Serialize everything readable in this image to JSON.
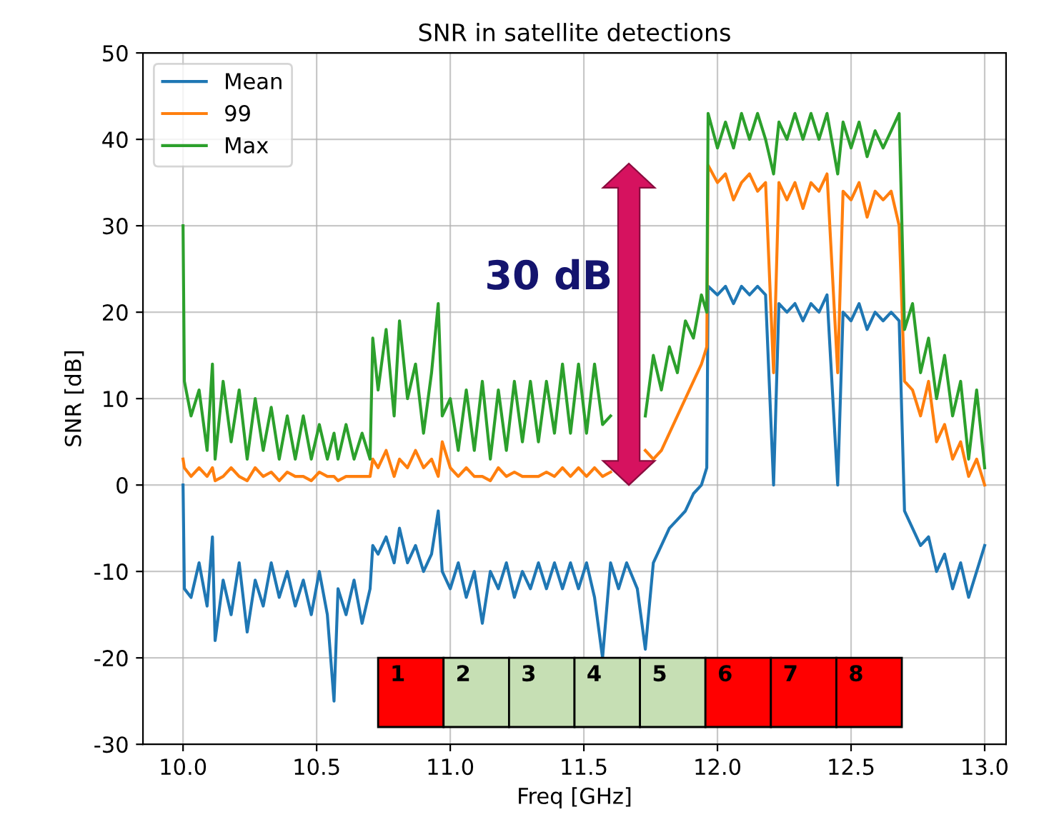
{
  "chart_data": {
    "type": "line",
    "title": "SNR in satellite detections",
    "xlabel": "Freq [GHz]",
    "ylabel": "SNR [dB]",
    "x": [
      10.0,
      10.005,
      10.03,
      10.06,
      10.09,
      10.11,
      10.12,
      10.15,
      10.18,
      10.21,
      10.24,
      10.27,
      10.3,
      10.33,
      10.36,
      10.39,
      10.42,
      10.45,
      10.48,
      10.51,
      10.54,
      10.565,
      10.58,
      10.61,
      10.64,
      10.67,
      10.7,
      10.71,
      10.73,
      10.76,
      10.79,
      10.81,
      10.84,
      10.87,
      10.9,
      10.93,
      10.955,
      10.97,
      11.0,
      11.03,
      11.06,
      11.09,
      11.12,
      11.15,
      11.18,
      11.21,
      11.24,
      11.27,
      11.3,
      11.33,
      11.36,
      11.39,
      11.42,
      11.45,
      11.48,
      11.51,
      11.54,
      11.57,
      11.6,
      11.63,
      11.66,
      11.7,
      11.73,
      11.76,
      11.79,
      11.82,
      11.85,
      11.88,
      11.91,
      11.94,
      11.96,
      11.965,
      12.0,
      12.03,
      12.06,
      12.09,
      12.12,
      12.15,
      12.18,
      12.21,
      12.23,
      12.26,
      12.29,
      12.32,
      12.35,
      12.38,
      12.41,
      12.45,
      12.47,
      12.5,
      12.53,
      12.56,
      12.59,
      12.62,
      12.65,
      12.68,
      12.7,
      12.73,
      12.76,
      12.79,
      12.82,
      12.85,
      12.88,
      12.91,
      12.94,
      12.97,
      13.0
    ],
    "series": [
      {
        "name": "Mean",
        "color": "#1f77b4",
        "values": [
          0,
          -12,
          -13,
          -9,
          -14,
          -6,
          -18,
          -11,
          -15,
          -9,
          -17,
          -11,
          -14,
          -9,
          -13,
          -10,
          -14,
          -11,
          -15,
          -10,
          -15,
          -25,
          -12,
          -15,
          -11,
          -16,
          -12,
          -7,
          -8,
          -6,
          -9,
          -5,
          -9,
          -7,
          -10,
          -8,
          -3,
          -10,
          -12,
          -9,
          -13,
          -10,
          -16,
          -10,
          -12,
          -9,
          -13,
          -10,
          -12,
          -9,
          -12,
          -9,
          -12,
          -9,
          -12,
          -9,
          -13,
          -20,
          -9,
          -12,
          -9,
          -12,
          -19,
          -9,
          -7,
          -5,
          -4,
          -3,
          -1,
          0,
          2,
          23,
          22,
          23,
          21,
          23,
          22,
          23,
          22,
          0,
          21,
          20,
          21,
          19,
          21,
          20,
          22,
          0,
          20,
          19,
          21,
          18,
          20,
          19,
          20,
          19,
          -3,
          -5,
          -7,
          -6,
          -10,
          -8,
          -12,
          -9,
          -13,
          -10,
          -7
        ]
      },
      {
        "name": "99",
        "color": "#ff7f0e",
        "values": [
          3,
          2,
          1,
          2,
          1,
          2,
          0.5,
          1,
          2,
          1,
          0.5,
          2,
          1,
          1.5,
          0.5,
          1.5,
          1,
          1,
          0.5,
          1.5,
          1,
          1,
          0.5,
          1,
          1,
          1,
          1,
          3,
          2,
          4,
          1,
          3,
          2,
          4,
          2,
          3,
          1,
          5,
          2,
          1,
          2,
          1,
          1,
          0.5,
          2,
          1,
          1.5,
          1,
          1,
          1,
          1.5,
          1,
          2,
          1,
          2,
          1,
          2,
          1,
          1.5,
          null,
          null,
          null,
          4,
          3,
          4,
          6,
          8,
          10,
          12,
          14,
          16,
          37,
          35,
          36,
          33,
          35,
          36,
          34,
          35,
          13,
          35,
          33,
          35,
          32,
          35,
          34,
          36,
          13,
          34,
          33,
          35,
          31,
          34,
          33,
          34,
          30,
          12,
          11,
          8,
          12,
          5,
          7,
          3,
          5,
          1,
          3,
          0
        ]
      },
      {
        "name": "Max",
        "color": "#2ca02c",
        "values": [
          30,
          12,
          8,
          11,
          4,
          14,
          3,
          12,
          5,
          11,
          3,
          10,
          4,
          9,
          3,
          8,
          3,
          8,
          3,
          7,
          3,
          6,
          3,
          7,
          3,
          6,
          3,
          17,
          11,
          18,
          8,
          19,
          10,
          14,
          6,
          13,
          21,
          8,
          10,
          4,
          11,
          4,
          12,
          3,
          11,
          4,
          12,
          5,
          12,
          5,
          12,
          6,
          14,
          6,
          14,
          6,
          14,
          7,
          8,
          null,
          null,
          null,
          8,
          15,
          11,
          16,
          13,
          19,
          17,
          22,
          20,
          43,
          39,
          42,
          39,
          43,
          40,
          43,
          40,
          36,
          42,
          40,
          43,
          40,
          43,
          40,
          43,
          36,
          42,
          39,
          42,
          38,
          41,
          39,
          41,
          43,
          18,
          21,
          13,
          17,
          10,
          15,
          8,
          12,
          3,
          11,
          2
        ]
      }
    ],
    "xlim": [
      9.85,
      13.08
    ],
    "xticks": [
      {
        "value": 10.0,
        "label": "10.0"
      },
      {
        "value": 10.5,
        "label": "10.5"
      },
      {
        "value": 11.0,
        "label": "11.0"
      },
      {
        "value": 11.5,
        "label": "11.5"
      },
      {
        "value": 12.0,
        "label": "12.0"
      },
      {
        "value": 12.5,
        "label": "12.5"
      },
      {
        "value": 13.0,
        "label": "13.0"
      }
    ],
    "ylim": [
      -30,
      50
    ],
    "yticks": [
      -30,
      -20,
      -10,
      0,
      10,
      20,
      30,
      40,
      50
    ],
    "grid": true,
    "legend": "top left",
    "annotations": [
      "30 dB"
    ],
    "bands": [
      {
        "axis": "x",
        "from": 10.73,
        "to": 10.975,
        "label": "1",
        "color": "#ff0000"
      },
      {
        "axis": "x",
        "from": 10.975,
        "to": 11.22,
        "label": "2",
        "color": "#c6dfb4"
      },
      {
        "axis": "x",
        "from": 11.22,
        "to": 11.465,
        "label": "3",
        "color": "#c6dfb4"
      },
      {
        "axis": "x",
        "from": 11.465,
        "to": 11.71,
        "label": "4",
        "color": "#c6dfb4"
      },
      {
        "axis": "x",
        "from": 11.71,
        "to": 11.955,
        "label": "5",
        "color": "#c6dfb4"
      },
      {
        "axis": "x",
        "from": 11.955,
        "to": 12.2,
        "label": "6",
        "color": "#ff0000"
      },
      {
        "axis": "x",
        "from": 12.2,
        "to": 12.445,
        "label": "7",
        "color": "#ff0000"
      },
      {
        "axis": "x",
        "from": 12.445,
        "to": 12.69,
        "label": "8",
        "color": "#ff0000"
      }
    ]
  }
}
